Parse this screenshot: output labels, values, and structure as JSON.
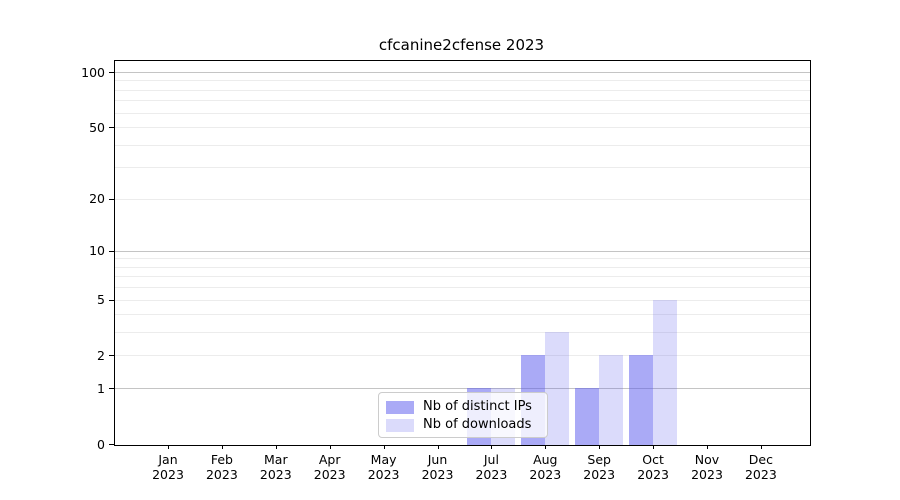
{
  "chart_data": {
    "type": "bar",
    "title": "cfcanine2cfense 2023",
    "categories": [
      "Jan 2023",
      "Feb 2023",
      "Mar 2023",
      "Apr 2023",
      "May 2023",
      "Jun 2023",
      "Jul 2023",
      "Aug 2023",
      "Sep 2023",
      "Oct 2023",
      "Nov 2023",
      "Dec 2023"
    ],
    "series": [
      {
        "name": "Nb of distinct IPs",
        "color": "rgba(85,85,237,0.5)",
        "values": [
          0,
          0,
          0,
          0,
          0,
          0,
          1,
          2,
          1,
          2,
          0,
          0
        ]
      },
      {
        "name": "Nb of downloads",
        "color": "rgba(85,85,237,0.21)",
        "values": [
          0,
          0,
          0,
          0,
          0,
          0,
          1,
          3,
          2,
          5,
          0,
          0
        ]
      }
    ],
    "y_axis": {
      "scale": "log1p",
      "ticks": [
        0,
        1,
        2,
        5,
        10,
        20,
        50,
        100
      ],
      "major_gridlines": [
        1,
        10,
        100
      ],
      "minor_gridlines": [
        2,
        3,
        4,
        5,
        6,
        7,
        8,
        9,
        20,
        30,
        40,
        50,
        60,
        70,
        80,
        90
      ],
      "ylim_top": 115
    },
    "legend_position": "lower center",
    "grid": true
  },
  "colors": {
    "background": "#ffffff",
    "bar_base": "#5555ed",
    "major_grid": "#c4c4c4",
    "minor_grid": "#ececec",
    "spine": "#000000",
    "legend_border": "#cccccc"
  }
}
